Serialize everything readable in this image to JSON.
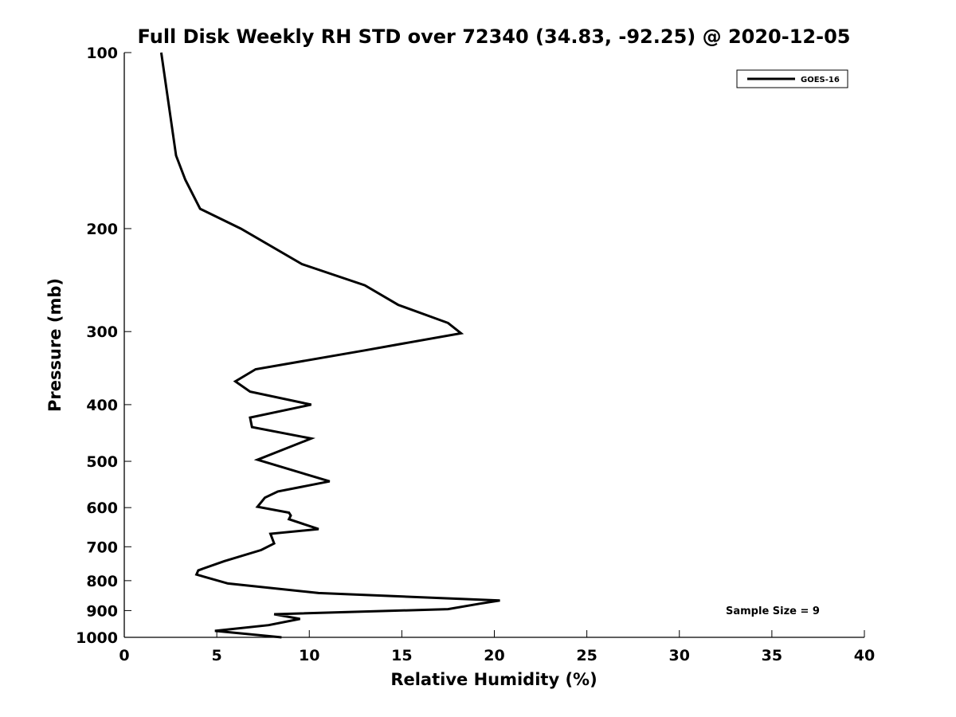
{
  "chart_data": {
    "type": "line",
    "title": "Full Disk Weekly RH STD over 72340 (34.83, -92.25) @ 2020-12-05",
    "xlabel": "Relative Humidity (%)",
    "ylabel": "Pressure (mb)",
    "xlim": [
      0,
      40
    ],
    "ylim": [
      100,
      1000
    ],
    "yscale": "log",
    "yreversed": true,
    "grid": false,
    "legend_position": "top-right",
    "x_ticks": [
      "0",
      "5",
      "10",
      "15",
      "20",
      "25",
      "30",
      "35",
      "40"
    ],
    "x_tick_values": [
      0,
      5,
      10,
      15,
      20,
      25,
      30,
      35,
      40
    ],
    "y_ticks": [
      "100",
      "200",
      "300",
      "400",
      "500",
      "600",
      "700",
      "800",
      "900",
      "1000"
    ],
    "y_tick_values": [
      100,
      200,
      300,
      400,
      500,
      600,
      700,
      800,
      900,
      1000
    ],
    "series": [
      {
        "name": "GOES-16",
        "color": "#000000",
        "x": [
          2.0,
          2.8,
          3.3,
          4.1,
          6.3,
          9.6,
          13.0,
          14.8,
          17.5,
          18.2,
          13.0,
          7.1,
          6.0,
          6.8,
          10.1,
          6.8,
          6.9,
          10.1,
          7.2,
          11.1,
          8.3,
          7.6,
          7.2,
          8.9,
          9.0,
          8.9,
          10.5,
          7.9,
          8.1,
          7.4,
          5.4,
          4.0,
          3.9,
          5.6,
          10.5,
          20.3,
          19.2,
          17.5,
          8.1,
          9.5,
          7.8,
          4.9,
          8.5
        ],
        "y": [
          100,
          150,
          165,
          185,
          200,
          230,
          250,
          270,
          290,
          302,
          323,
          348,
          365,
          380,
          400,
          421,
          437,
          457,
          497,
          541,
          563,
          577,
          598,
          612,
          619,
          628,
          653,
          665,
          691,
          709,
          741,
          768,
          781,
          809,
          840,
          865,
          876,
          895,
          913,
          930,
          953,
          975,
          1000
        ]
      }
    ],
    "annotations": [
      "Sample Size = 9"
    ]
  }
}
